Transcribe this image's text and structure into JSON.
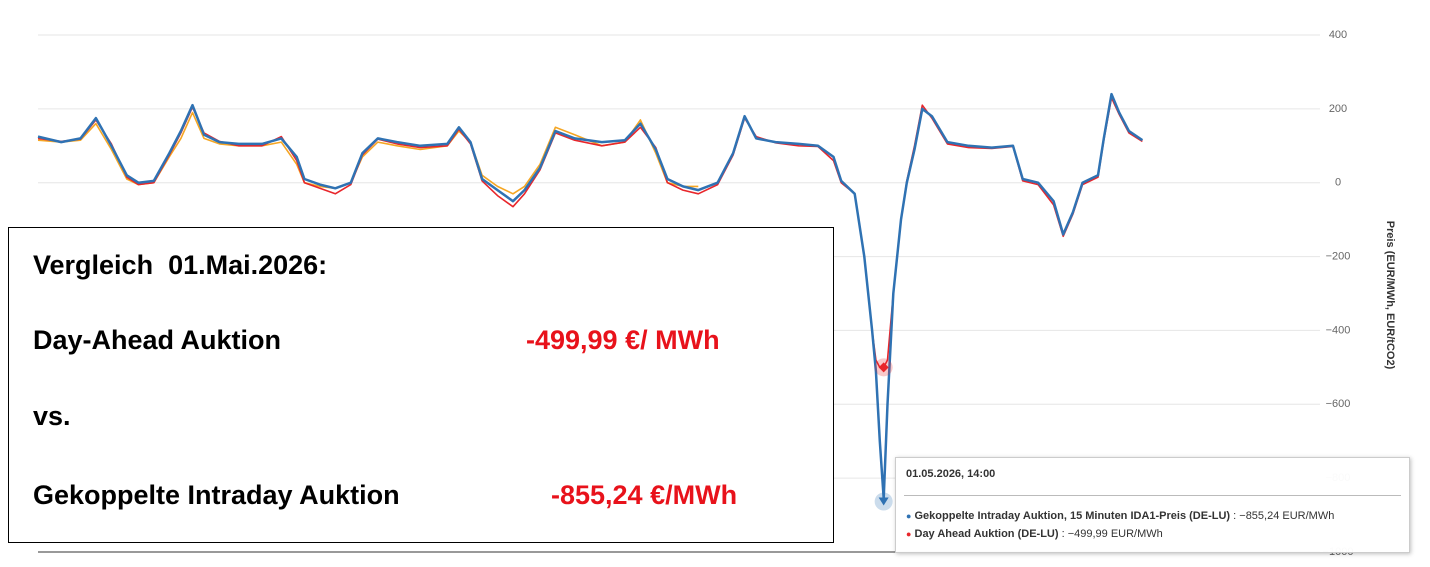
{
  "chart_data": {
    "type": "line",
    "y_label": "Preis (EUR/MWh, EUR/tCO2)",
    "xlim": [
      0,
      166
    ],
    "ylim": [
      -1000,
      400
    ],
    "yticks": [
      400,
      200,
      0,
      {
        "value": -200,
        "label": "−200"
      },
      {
        "value": -400,
        "label": "−400"
      },
      {
        "value": -600,
        "label": "−600"
      },
      {
        "value": -800,
        "label": "−800"
      },
      {
        "value": -1000,
        "label": "−1000"
      }
    ],
    "grid": true,
    "x": [
      0,
      3,
      5.5,
      7.5,
      9.5,
      11.5,
      13,
      15,
      17,
      18.5,
      20,
      21.5,
      23.5,
      26,
      29,
      31.5,
      33.5,
      34.5,
      36.5,
      38.5,
      40.5,
      42,
      44,
      46.5,
      49.5,
      53,
      54.5,
      56,
      57.5,
      59.5,
      61.5,
      63,
      65,
      67,
      69.5,
      73,
      76,
      78,
      80,
      81.5,
      83.5,
      85.5,
      88,
      90,
      91.5,
      93,
      95.5,
      98.5,
      101,
      103,
      104,
      105.75,
      107,
      108,
      108.5,
      109,
      109.5,
      110,
      110.75,
      111.75,
      112.5,
      113.5,
      114.5,
      115.75,
      117.75,
      120.5,
      123.5,
      126.25,
      127.5,
      129.5,
      131.5,
      132.75,
      134,
      135.25,
      137.25,
      138,
      139,
      140,
      141.25,
      143
    ],
    "series": [
      {
        "color": "#f5a623",
        "values": [
          115,
          110,
          115,
          160,
          90,
          10,
          -5,
          0,
          70,
          120,
          190,
          120,
          105,
          100,
          100,
          110,
          50,
          0,
          -10,
          -15,
          0,
          70,
          110,
          100,
          90,
          100,
          140,
          110,
          20,
          -10,
          -30,
          -10,
          50,
          150,
          130,
          100,
          110,
          170,
          80,
          0,
          -10,
          -10,
          null,
          null,
          null,
          null,
          null,
          null,
          null,
          null,
          null,
          null,
          null,
          null,
          null,
          null,
          null,
          null,
          null,
          null,
          null,
          null,
          null,
          null,
          null,
          null,
          null,
          null,
          null,
          null,
          null,
          null,
          null,
          null,
          null,
          null,
          null,
          null,
          null,
          null
        ]
      },
      {
        "name": "Day Ahead Auktion (DE-LU)",
        "color": "#e8262b",
        "values": [
          120,
          112,
          118,
          170,
          105,
          15,
          -5,
          0,
          75,
          135,
          205,
          135,
          112,
          100,
          100,
          125,
          60,
          0,
          -15,
          -30,
          -5,
          75,
          118,
          105,
          95,
          100,
          145,
          105,
          5,
          -35,
          -65,
          -30,
          35,
          135,
          115,
          100,
          110,
          150,
          95,
          0,
          -20,
          -30,
          -5,
          75,
          175,
          125,
          108,
          100,
          98,
          60,
          0,
          -30,
          -200,
          -400,
          -480,
          -500,
          -499.99,
          -480,
          -300,
          -100,
          5,
          100,
          210,
          175,
          105,
          95,
          93,
          98,
          5,
          -5,
          -60,
          -145,
          -85,
          -5,
          15,
          115,
          230,
          185,
          135,
          112
        ]
      },
      {
        "name": "Gekoppelte Intraday Auktion, 15 Minuten IDA1-Preis (DE-LU)",
        "color": "#2f72b3",
        "values": [
          125,
          110,
          120,
          175,
          100,
          20,
          0,
          5,
          80,
          140,
          210,
          130,
          110,
          105,
          105,
          120,
          70,
          10,
          -5,
          -15,
          0,
          80,
          120,
          110,
          100,
          105,
          150,
          110,
          10,
          -20,
          -50,
          -20,
          40,
          140,
          120,
          110,
          115,
          160,
          90,
          10,
          -10,
          -20,
          0,
          80,
          180,
          120,
          110,
          105,
          100,
          70,
          5,
          -30,
          -200,
          -400,
          -510,
          -700,
          -855.24,
          -600,
          -300,
          -100,
          0,
          90,
          200,
          180,
          110,
          100,
          95,
          100,
          10,
          0,
          -50,
          -140,
          -80,
          0,
          20,
          120,
          240,
          190,
          140,
          115
        ]
      }
    ],
    "highlight_index": 56,
    "tooltip": {
      "title": "01.05.2026, 14:00",
      "items": [
        ": −855,24 EUR/MWh",
        ": −499,99 EUR/MWh"
      ]
    },
    "annotation_box": {
      "heading": "Vergleich  01.Mai.2026:",
      "label_1": "Day-Ahead Auktion",
      "value_1": "-499,99 €/ MWh",
      "separator": "vs.",
      "label_2": "Gekoppelte Intraday Auktion",
      "value_2": "-855,24 €/MWh"
    }
  }
}
